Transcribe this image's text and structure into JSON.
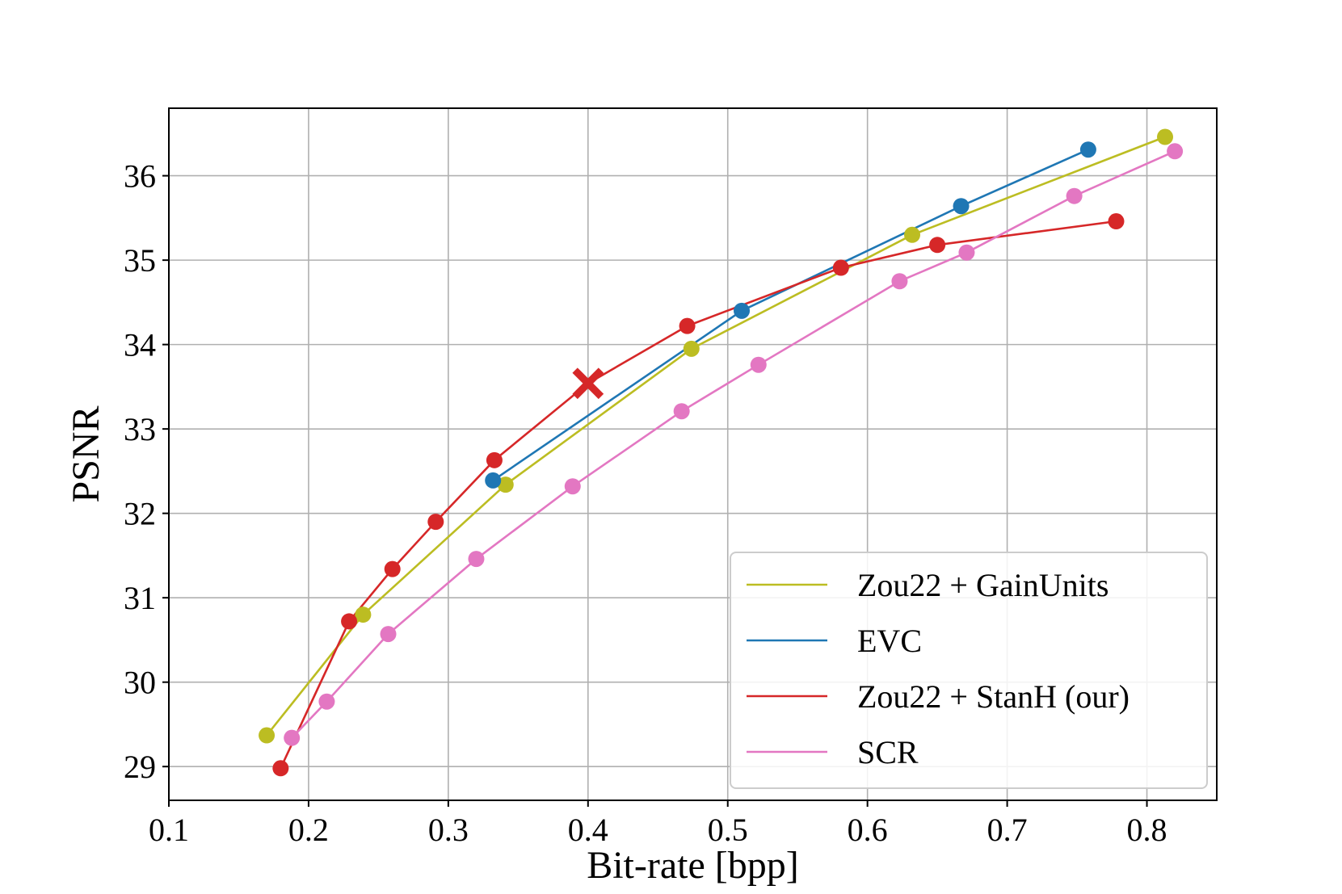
{
  "chart_data": {
    "type": "line",
    "title": "",
    "xlabel": "Bit-rate [bpp]",
    "ylabel": "PSNR",
    "xlim": [
      0.1,
      0.85
    ],
    "ylim": [
      28.6,
      36.8
    ],
    "xticks": [
      0.1,
      0.2,
      0.3,
      0.4,
      0.5,
      0.6,
      0.7,
      0.8
    ],
    "xtick_labels": [
      "0.1",
      "0.2",
      "0.3",
      "0.4",
      "0.5",
      "0.6",
      "0.7",
      "0.8"
    ],
    "yticks": [
      29,
      30,
      31,
      32,
      33,
      34,
      35,
      36
    ],
    "ytick_labels": [
      "29",
      "30",
      "31",
      "32",
      "33",
      "34",
      "35",
      "36"
    ],
    "grid": true,
    "legend_position": "lower-right",
    "series": [
      {
        "name": "Zou22 + GainUnits",
        "color": "#bcbd22",
        "x": [
          0.17,
          0.239,
          0.341,
          0.474,
          0.632,
          0.813
        ],
        "y": [
          29.37,
          30.8,
          32.34,
          33.95,
          35.3,
          36.46
        ]
      },
      {
        "name": "EVC",
        "color": "#1f77b4",
        "x": [
          0.332,
          0.51,
          0.667,
          0.758
        ],
        "y": [
          32.39,
          34.4,
          35.64,
          36.31
        ]
      },
      {
        "name": "Zou22 + StanH (our)",
        "color": "#d62728",
        "x": [
          0.18,
          0.229,
          0.26,
          0.291,
          0.333,
          0.4,
          0.471,
          0.581,
          0.65,
          0.778
        ],
        "y": [
          28.98,
          30.72,
          31.34,
          31.9,
          32.63,
          33.54,
          34.22,
          34.91,
          35.18,
          35.46
        ]
      },
      {
        "name": "SCR",
        "color": "#e377c2",
        "x": [
          0.188,
          0.213,
          0.257,
          0.32,
          0.389,
          0.467,
          0.522,
          0.623,
          0.671,
          0.748,
          0.82
        ],
        "y": [
          29.34,
          29.77,
          30.57,
          31.46,
          32.32,
          33.21,
          33.76,
          34.75,
          35.09,
          35.76,
          36.29
        ]
      }
    ],
    "highlight": {
      "series": "Zou22 + StanH (our)",
      "marker": "x",
      "x": 0.4,
      "y": 33.54
    }
  }
}
